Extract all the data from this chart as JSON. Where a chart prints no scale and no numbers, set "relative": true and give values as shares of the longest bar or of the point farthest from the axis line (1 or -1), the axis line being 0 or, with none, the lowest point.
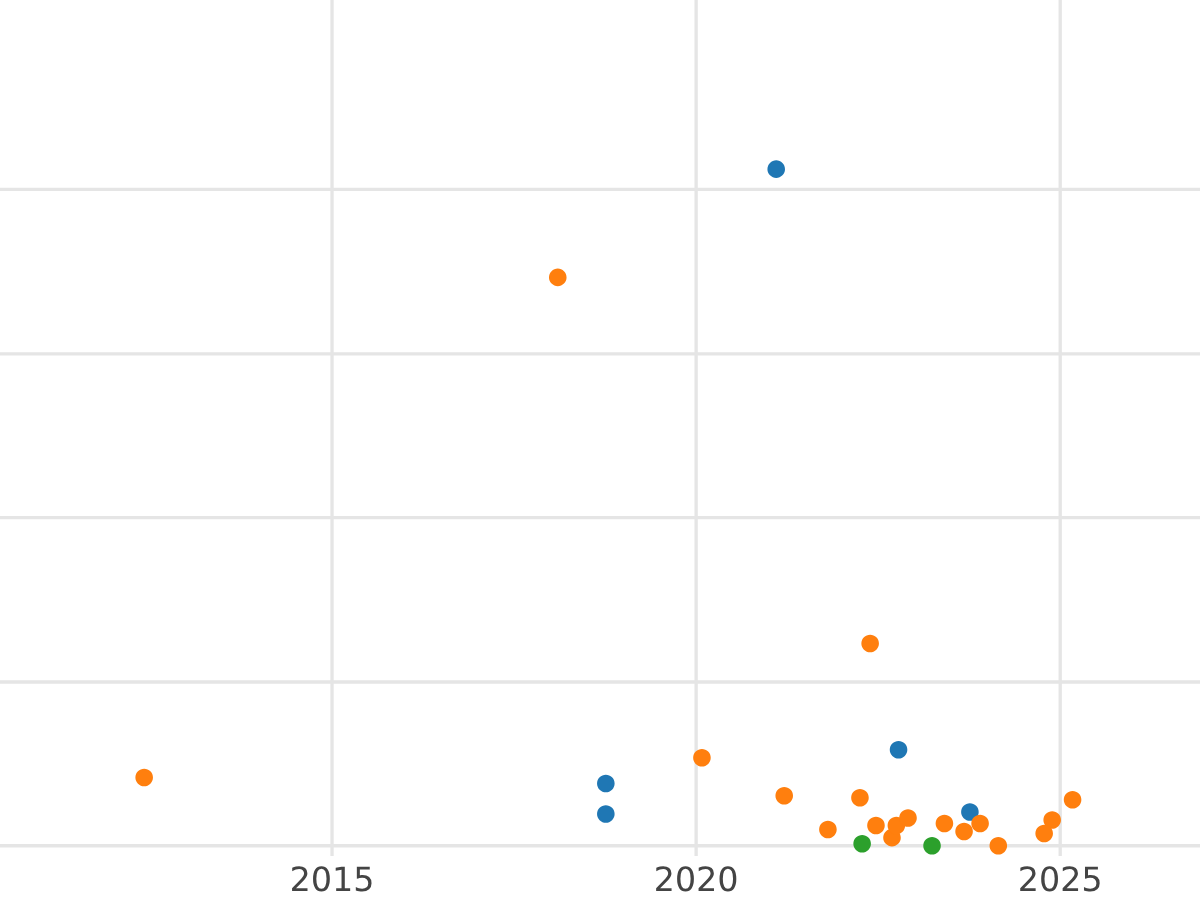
{
  "chart_data": {
    "type": "scatter",
    "relative": true,
    "xlim": [
      2010.44,
      2026.92
    ],
    "xticks": [
      2015,
      2020,
      2025
    ],
    "grid": true,
    "marker": "circle",
    "tick_labels": "x",
    "series": [
      {
        "color": "#1f77b4",
        "x": [
          2021.1,
          2018.76,
          2018.76,
          2022.78,
          2023.76
        ],
        "values": [
          1.0,
          0.092,
          0.047,
          0.142,
          0.05
        ]
      },
      {
        "color": "#ff7f0e",
        "x": [
          2012.42,
          2018.1,
          2020.08,
          2022.39,
          2021.21,
          2022.25,
          2021.81,
          2022.47,
          2022.69,
          2022.75,
          2022.91,
          2023.41,
          2023.68,
          2023.9,
          2024.09,
          2024.15,
          2024.78,
          2024.89,
          2024.78,
          2025.17
        ],
        "values": [
          0.101,
          0.84,
          0.13,
          0.299,
          0.074,
          0.071,
          0.024,
          0.03,
          0.012,
          0.03,
          0.041,
          0.033,
          0.021,
          0.033,
          null,
          0.0,
          null,
          0.038,
          0.018,
          0.068
        ]
      },
      {
        "color": "#2ca02c",
        "x": [
          2022.28,
          2023.24
        ],
        "values": [
          0.003,
          0.0
        ]
      }
    ]
  }
}
